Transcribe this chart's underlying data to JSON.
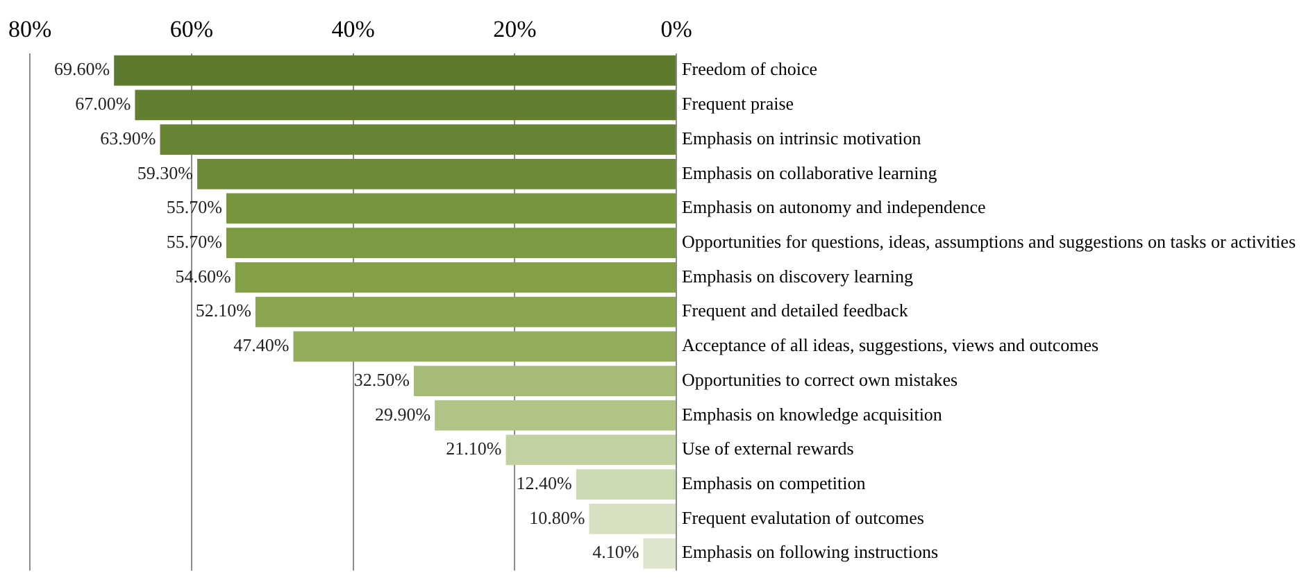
{
  "chart_data": {
    "type": "bar",
    "orientation": "horizontal",
    "categories": [
      "Freedom of choice",
      "Frequent praise",
      "Emphasis on intrinsic motivation",
      "Emphasis on collaborative learning",
      "Emphasis on autonomy and independence",
      "Opportunities for questions, ideas, assumptions and suggestions on tasks or activities",
      "Emphasis on discovery learning",
      "Frequent and detailed feedback",
      "Acceptance of all ideas, suggestions, views and outcomes",
      "Opportunities to correct own mistakes",
      "Emphasis on knowledge acquisition",
      "Use of external rewards",
      "Emphasis on competition",
      "Frequent evalutation of outcomes",
      "Emphasis on following instructions"
    ],
    "values": [
      69.6,
      67.0,
      63.9,
      59.3,
      55.7,
      55.7,
      54.6,
      52.1,
      47.4,
      32.5,
      29.9,
      21.1,
      12.4,
      10.8,
      4.1
    ],
    "value_labels": [
      "69.60%",
      "67.00%",
      "63.90%",
      "59.30%",
      "55.70%",
      "55.70%",
      "54.60%",
      "52.10%",
      "47.40%",
      "32.50%",
      "29.90%",
      "21.10%",
      "12.40%",
      "10.80%",
      "4.10%"
    ],
    "colors": [
      "#5e7a2f",
      "#627f31",
      "#678534",
      "#6e8c38",
      "#76953d",
      "#7c9a42",
      "#83a047",
      "#8aa64f",
      "#93ad5a",
      "#a5bb77",
      "#b0c486",
      "#c1d19f",
      "#cddbb2",
      "#d6e1c2",
      "#dde6cc"
    ],
    "xlim": [
      80,
      0
    ],
    "xticks": [
      {
        "value": 80,
        "label": "80%"
      },
      {
        "value": 60,
        "label": "60%"
      },
      {
        "value": 40,
        "label": "40%"
      },
      {
        "value": 20,
        "label": "20%"
      },
      {
        "value": 0,
        "label": "0%"
      }
    ],
    "grid": "x",
    "legend": false
  }
}
